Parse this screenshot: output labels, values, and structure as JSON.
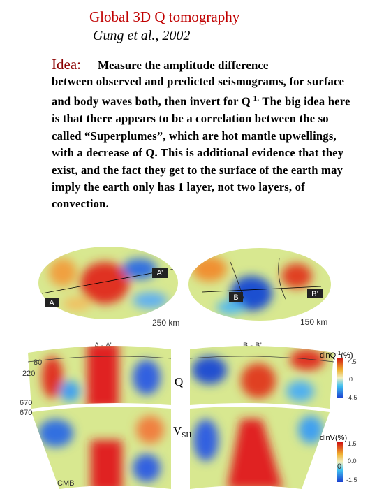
{
  "title": "Global 3D Q tomography",
  "subtitle": "Gung et al., 2002",
  "idea_label": "Idea:",
  "idea_first": "Measure the amplitude difference",
  "body_1": "between observed and predicted seismograms, for surface and body waves both, then invert for Q",
  "body_sup": "-1.",
  "body_2": " The big idea here is that there appears to be a correlation between the so called “Superplumes”, which are hot mantle upwellings, with a decrease of Q.  This is additional evidence that they exist, and the fact they get to the surface of the earth may imply the earth only has 1 layer, not two layers, of convection.",
  "figure": {
    "maps": {
      "left_top": "A’",
      "left_bottom": "A",
      "right_left": "B",
      "right_right": "B’",
      "left_depth": "250 km",
      "right_depth": "150 km"
    },
    "sections": {
      "left_title": "A - A’",
      "right_title": "B - B’",
      "depth_80": "80",
      "depth_220": "220",
      "depth_670_top": "670",
      "depth_670_bottom": "670",
      "cmb": "CMB",
      "q_label": "Q",
      "v_label": "V",
      "v_sub": "SH"
    },
    "colorbar_q": {
      "label": "dlnQ",
      "label_sup": "-1",
      "label_unit": "(%)",
      "max": "4.5",
      "mid": "0",
      "min": "-4.5"
    },
    "colorbar_v": {
      "label": "dlnV(%)",
      "max": "1.5",
      "mid": "0.0",
      "min": "-1.5",
      "stray": "0"
    }
  }
}
